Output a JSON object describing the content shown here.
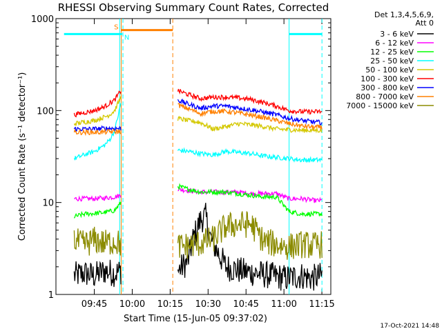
{
  "chart_data": {
    "type": "line",
    "title": "RHESSI Observing Summary Count Rates, Corrected",
    "xlabel": "Start Time (15-Jun-05 09:37:02)",
    "ylabel": "Corrected Count Rate (s⁻¹ detector⁻¹)",
    "yscale": "log",
    "ylim": [
      1,
      1000
    ],
    "xlim_minutes": [
      0,
      100
    ],
    "x_tick_labels": [
      "09:45",
      "10:00",
      "10:15",
      "10:30",
      "10:45",
      "11:00",
      "11:15"
    ],
    "y_tick_labels": [
      "1",
      "10",
      "100",
      "1000"
    ],
    "legend_header": [
      "Det 1,3,4,5,6,9,",
      "Att 0"
    ],
    "legend_position": "right",
    "timestamp": "17-Oct-2021 14:48",
    "series": [
      {
        "name": "3 - 6 keV",
        "color": "#000000",
        "segments": [
          {
            "x": [
              0,
              4,
              8,
              12,
              16,
              18.5
            ],
            "y": [
              1.6,
              1.7,
              1.6,
              1.8,
              1.7,
              1.8
            ]
          },
          {
            "x": [
              41,
              45,
              47,
              50,
              52,
              54,
              60,
              66,
              72,
              78,
              84,
              90,
              94,
              98
            ],
            "y": [
              1.8,
              2.3,
              4.0,
              6.5,
              7.0,
              4.0,
              2.0,
              1.8,
              1.7,
              1.6,
              1.5,
              1.6,
              1.5,
              1.6
            ]
          }
        ]
      },
      {
        "name": "6 - 12 keV",
        "color": "#ff00ff",
        "segments": [
          {
            "x": [
              0,
              4,
              8,
              12,
              16,
              18.5
            ],
            "y": [
              11,
              11,
              11,
              11.2,
              11.5,
              12
            ]
          },
          {
            "x": [
              41,
              45,
              50,
              55,
              60,
              65,
              70,
              75,
              80,
              85,
              90,
              95,
              98
            ],
            "y": [
              14,
              13.5,
              13,
              13,
              13,
              13,
              12.5,
              12.5,
              12.5,
              11,
              11,
              10.5,
              10.5
            ]
          }
        ]
      },
      {
        "name": "12 - 25 keV",
        "color": "#00ff00",
        "segments": [
          {
            "x": [
              0,
              4,
              8,
              12,
              16,
              18.5
            ],
            "y": [
              7,
              7.5,
              7.6,
              7.8,
              8.2,
              10
            ]
          },
          {
            "x": [
              41,
              45,
              50,
              55,
              60,
              65,
              70,
              75,
              80,
              85,
              90,
              95,
              98
            ],
            "y": [
              15,
              14,
              13,
              13,
              13,
              12.5,
              12,
              11.5,
              11.5,
              8,
              7.5,
              7.5,
              7.5
            ]
          }
        ]
      },
      {
        "name": "25 - 50 keV",
        "color": "#00ffff",
        "segments": [
          {
            "x": [
              0,
              4,
              8,
              12,
              14,
              16,
              18.5
            ],
            "y": [
              30,
              33,
              36,
              42,
              48,
              60,
              120
            ]
          },
          {
            "x": [
              41,
              45,
              50,
              55,
              60,
              65,
              70,
              75,
              80,
              85,
              90,
              95,
              98
            ],
            "y": [
              37,
              36,
              34,
              33,
              36,
              35,
              34,
              32,
              31,
              30,
              29,
              29,
              29
            ]
          }
        ]
      },
      {
        "name": "50 - 100 keV",
        "color": "#d4c800",
        "segments": [
          {
            "x": [
              0,
              4,
              8,
              12,
              14,
              16,
              18.5
            ],
            "y": [
              72,
              75,
              78,
              85,
              90,
              100,
              140
            ]
          },
          {
            "x": [
              41,
              45,
              50,
              55,
              60,
              65,
              70,
              75,
              80,
              85,
              90,
              95,
              98
            ],
            "y": [
              82,
              78,
              74,
              63,
              67,
              72,
              70,
              67,
              63,
              62,
              61,
              61,
              61
            ]
          }
        ]
      },
      {
        "name": "100 - 300 keV",
        "color": "#ff0000",
        "segments": [
          {
            "x": [
              0,
              4,
              8,
              12,
              14,
              16,
              18.5
            ],
            "y": [
              90,
              95,
              100,
              110,
              120,
              130,
              165
            ]
          },
          {
            "x": [
              41,
              45,
              50,
              55,
              60,
              65,
              70,
              75,
              80,
              85,
              90,
              95,
              98
            ],
            "y": [
              165,
              150,
              135,
              140,
              140,
              137,
              132,
              122,
              112,
              100,
              97,
              97,
              97
            ]
          }
        ]
      },
      {
        "name": "300 - 800 keV",
        "color": "#0000ff",
        "segments": [
          {
            "x": [
              0,
              4,
              8,
              12,
              16,
              18.5
            ],
            "y": [
              63,
              63,
              63,
              64,
              64,
              64
            ]
          },
          {
            "x": [
              41,
              45,
              50,
              55,
              60,
              65,
              70,
              75,
              80,
              85,
              90,
              95,
              98
            ],
            "y": [
              130,
              118,
              106,
              112,
              112,
              107,
              102,
              96,
              90,
              82,
              78,
              75,
              74
            ]
          }
        ]
      },
      {
        "name": "800 - 7000 keV",
        "color": "#ff8000",
        "segments": [
          {
            "x": [
              0,
              4,
              8,
              12,
              16,
              18.5
            ],
            "y": [
              58,
              58,
              58,
              58.5,
              59,
              59
            ]
          },
          {
            "x": [
              41,
              45,
              50,
              55,
              60,
              65,
              70,
              75,
              80,
              85,
              90,
              95,
              98
            ],
            "y": [
              115,
              105,
              93,
              98,
              98,
              94,
              89,
              84,
              78,
              72,
              68,
              66,
              66
            ]
          }
        ]
      },
      {
        "name": "7000 - 15000 keV",
        "color": "#8b8b00",
        "segments": [
          {
            "x": [
              0,
              4,
              8,
              12,
              16,
              18.5
            ],
            "y": [
              3.8,
              3.5,
              3.9,
              3.6,
              3.8,
              3.5
            ]
          },
          {
            "x": [
              41,
              45,
              50,
              55,
              60,
              65,
              70,
              75,
              80,
              85,
              90,
              95,
              98
            ],
            "y": [
              3.3,
              3.4,
              3.6,
              4.0,
              5.5,
              5.8,
              5.8,
              3.8,
              3.5,
              3.3,
              3.5,
              3.4,
              3.5
            ]
          }
        ]
      }
    ],
    "flags": [
      {
        "label": "S",
        "color": "#ff8000",
        "type": "bar",
        "y": 750,
        "x_range": [
          18.5,
          39
        ]
      },
      {
        "label": "N",
        "color": "#00ffff",
        "type": "bar",
        "y": 680,
        "x_range": [
          -4,
          19
        ]
      },
      {
        "label": "",
        "color": "#00ffff",
        "type": "bar",
        "y": 680,
        "x_range": [
          85,
          98
        ]
      }
    ],
    "vertical_lines": [
      {
        "x": 18,
        "color": "#00ffff",
        "style": "solid"
      },
      {
        "x": 19.3,
        "color": "#00ffff",
        "style": "dashed"
      },
      {
        "x": 18.6,
        "color": "#ff8000",
        "style": "solid"
      },
      {
        "x": 39,
        "color": "#ff8000",
        "style": "dashed"
      },
      {
        "x": 85,
        "color": "#00ffff",
        "style": "solid"
      },
      {
        "x": 98,
        "color": "#00ffff",
        "style": "dashed"
      }
    ]
  }
}
